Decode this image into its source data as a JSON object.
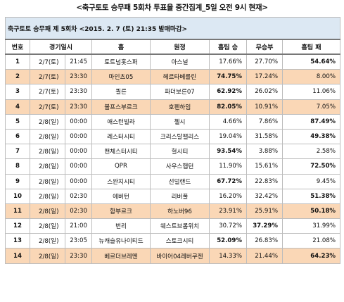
{
  "title": "<축구토토 승무패 5회차 투표율 중간집계_5일 오전 9시 현재>",
  "subtitle": "축구토토 승무패 제 5회차 <2015. 2. 7 (토) 21:35 발매마감>",
  "headers": {
    "no": "번호",
    "datetime": "경기일시",
    "home": "홈",
    "away": "원정",
    "home_win": "홈팀 승",
    "draw": "무승부",
    "home_loss": "홈팀 패"
  },
  "rows": [
    {
      "no": "1",
      "date": "2/7(토)",
      "time": "21:45",
      "home": "토트넘홋스퍼",
      "away": "아스널",
      "win": "17.66%",
      "draw": "27.70%",
      "loss": "54.64%",
      "highlight": false,
      "bold": "loss"
    },
    {
      "no": "2",
      "date": "2/7(토)",
      "time": "23:30",
      "home": "마인츠05",
      "away": "헤르타베를린",
      "win": "74.75%",
      "draw": "17.24%",
      "loss": "8.00%",
      "highlight": true,
      "bold": "win"
    },
    {
      "no": "3",
      "date": "2/7(토)",
      "time": "23:30",
      "home": "쾰른",
      "away": "파더보른07",
      "win": "62.92%",
      "draw": "26.02%",
      "loss": "11.06%",
      "highlight": false,
      "bold": "win"
    },
    {
      "no": "4",
      "date": "2/7(토)",
      "time": "23:30",
      "home": "볼프스부르크",
      "away": "호펜하임",
      "win": "82.05%",
      "draw": "10.91%",
      "loss": "7.05%",
      "highlight": true,
      "bold": "win"
    },
    {
      "no": "5",
      "date": "2/8(일)",
      "time": "00:00",
      "home": "애스턴빌라",
      "away": "첼시",
      "win": "4.66%",
      "draw": "7.86%",
      "loss": "87.49%",
      "highlight": false,
      "bold": "loss"
    },
    {
      "no": "6",
      "date": "2/8(일)",
      "time": "00:00",
      "home": "레스터시티",
      "away": "크리스탈팰리스",
      "win": "19.04%",
      "draw": "31.58%",
      "loss": "49.38%",
      "highlight": false,
      "bold": "loss"
    },
    {
      "no": "7",
      "date": "2/8(일)",
      "time": "00:00",
      "home": "맨체스터시티",
      "away": "헐시티",
      "win": "93.54%",
      "draw": "3.88%",
      "loss": "2.58%",
      "highlight": false,
      "bold": "win"
    },
    {
      "no": "8",
      "date": "2/8(일)",
      "time": "00:00",
      "home": "QPR",
      "away": "사우스햄턴",
      "win": "11.90%",
      "draw": "15.61%",
      "loss": "72.50%",
      "highlight": false,
      "bold": "loss"
    },
    {
      "no": "9",
      "date": "2/8(일)",
      "time": "00:00",
      "home": "스완지시티",
      "away": "선덜랜드",
      "win": "67.72%",
      "draw": "22.83%",
      "loss": "9.45%",
      "highlight": false,
      "bold": "win"
    },
    {
      "no": "10",
      "date": "2/8(일)",
      "time": "02:30",
      "home": "에버턴",
      "away": "리버풀",
      "win": "16.20%",
      "draw": "32.42%",
      "loss": "51.38%",
      "highlight": false,
      "bold": "loss"
    },
    {
      "no": "11",
      "date": "2/8(일)",
      "time": "02:30",
      "home": "함부르크",
      "away": "하노버96",
      "win": "23.91%",
      "draw": "25.91%",
      "loss": "50.18%",
      "highlight": true,
      "bold": "loss"
    },
    {
      "no": "12",
      "date": "2/8(일)",
      "time": "21:00",
      "home": "번리",
      "away": "웨스트브롬위치",
      "win": "30.72%",
      "draw": "37.29%",
      "loss": "31.99%",
      "highlight": false,
      "bold": "draw"
    },
    {
      "no": "13",
      "date": "2/8(일)",
      "time": "23:05",
      "home": "뉴캐슬유나이티드",
      "away": "스토크시티",
      "win": "52.09%",
      "draw": "26.83%",
      "loss": "21.08%",
      "highlight": false,
      "bold": "win"
    },
    {
      "no": "14",
      "date": "2/8(일)",
      "time": "23:30",
      "home": "베르더브레멘",
      "away": "바이어04레버쿠젠",
      "win": "14.33%",
      "draw": "21.44%",
      "loss": "64.23%",
      "highlight": true,
      "bold": "loss"
    }
  ],
  "colors": {
    "highlight_row": "#fad7b6",
    "subtitle_bg": "#dce8f3",
    "border": "#bdbdbd"
  }
}
